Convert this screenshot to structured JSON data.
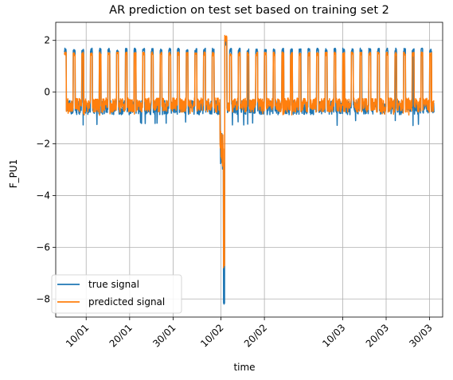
{
  "chart_data": {
    "type": "line",
    "title": "AR prediction on test set based on training set 2",
    "xlabel": "time",
    "ylabel": "F_PU1",
    "x_axis_type": "date",
    "x_range": [
      "2017-01-03",
      "2017-04-02"
    ],
    "ylim": [
      -8.7,
      2.7
    ],
    "x_ticks": [
      {
        "date": "2017-01-10",
        "label": "10/01"
      },
      {
        "date": "2017-01-20",
        "label": "20/01"
      },
      {
        "date": "2017-01-30",
        "label": "30/01"
      },
      {
        "date": "2017-02-10",
        "label": "10/02"
      },
      {
        "date": "2017-02-20",
        "label": "20/02"
      },
      {
        "date": "2017-03-10",
        "label": "10/03"
      },
      {
        "date": "2017-03-20",
        "label": "20/03"
      },
      {
        "date": "2017-03-30",
        "label": "30/03"
      }
    ],
    "y_ticks": [
      {
        "value": 2,
        "label": "2"
      },
      {
        "value": 0,
        "label": "0"
      },
      {
        "value": -2,
        "label": "−2"
      },
      {
        "value": -4,
        "label": "−4"
      },
      {
        "value": -6,
        "label": "−6"
      },
      {
        "value": -8,
        "label": "−8"
      }
    ],
    "grid": true,
    "legend_position": "lower-left",
    "series_start": "2017-01-05",
    "series_end": "2017-03-31",
    "series": [
      {
        "name": "true signal",
        "color": "#1f77b4",
        "cycle_days": 2,
        "high": 1.7,
        "low": -0.6,
        "min_dip": -1.3,
        "anomaly": {
          "date": "2017-02-11",
          "min": -8.2,
          "max": 2.1
        }
      },
      {
        "name": "predicted signal",
        "color": "#ff7f0e",
        "cycle_days": 2,
        "high": 1.55,
        "low": -0.5,
        "min_dip": -0.9,
        "anomaly": {
          "date": "2017-02-11",
          "min": -6.8,
          "max": 2.2
        }
      }
    ]
  }
}
